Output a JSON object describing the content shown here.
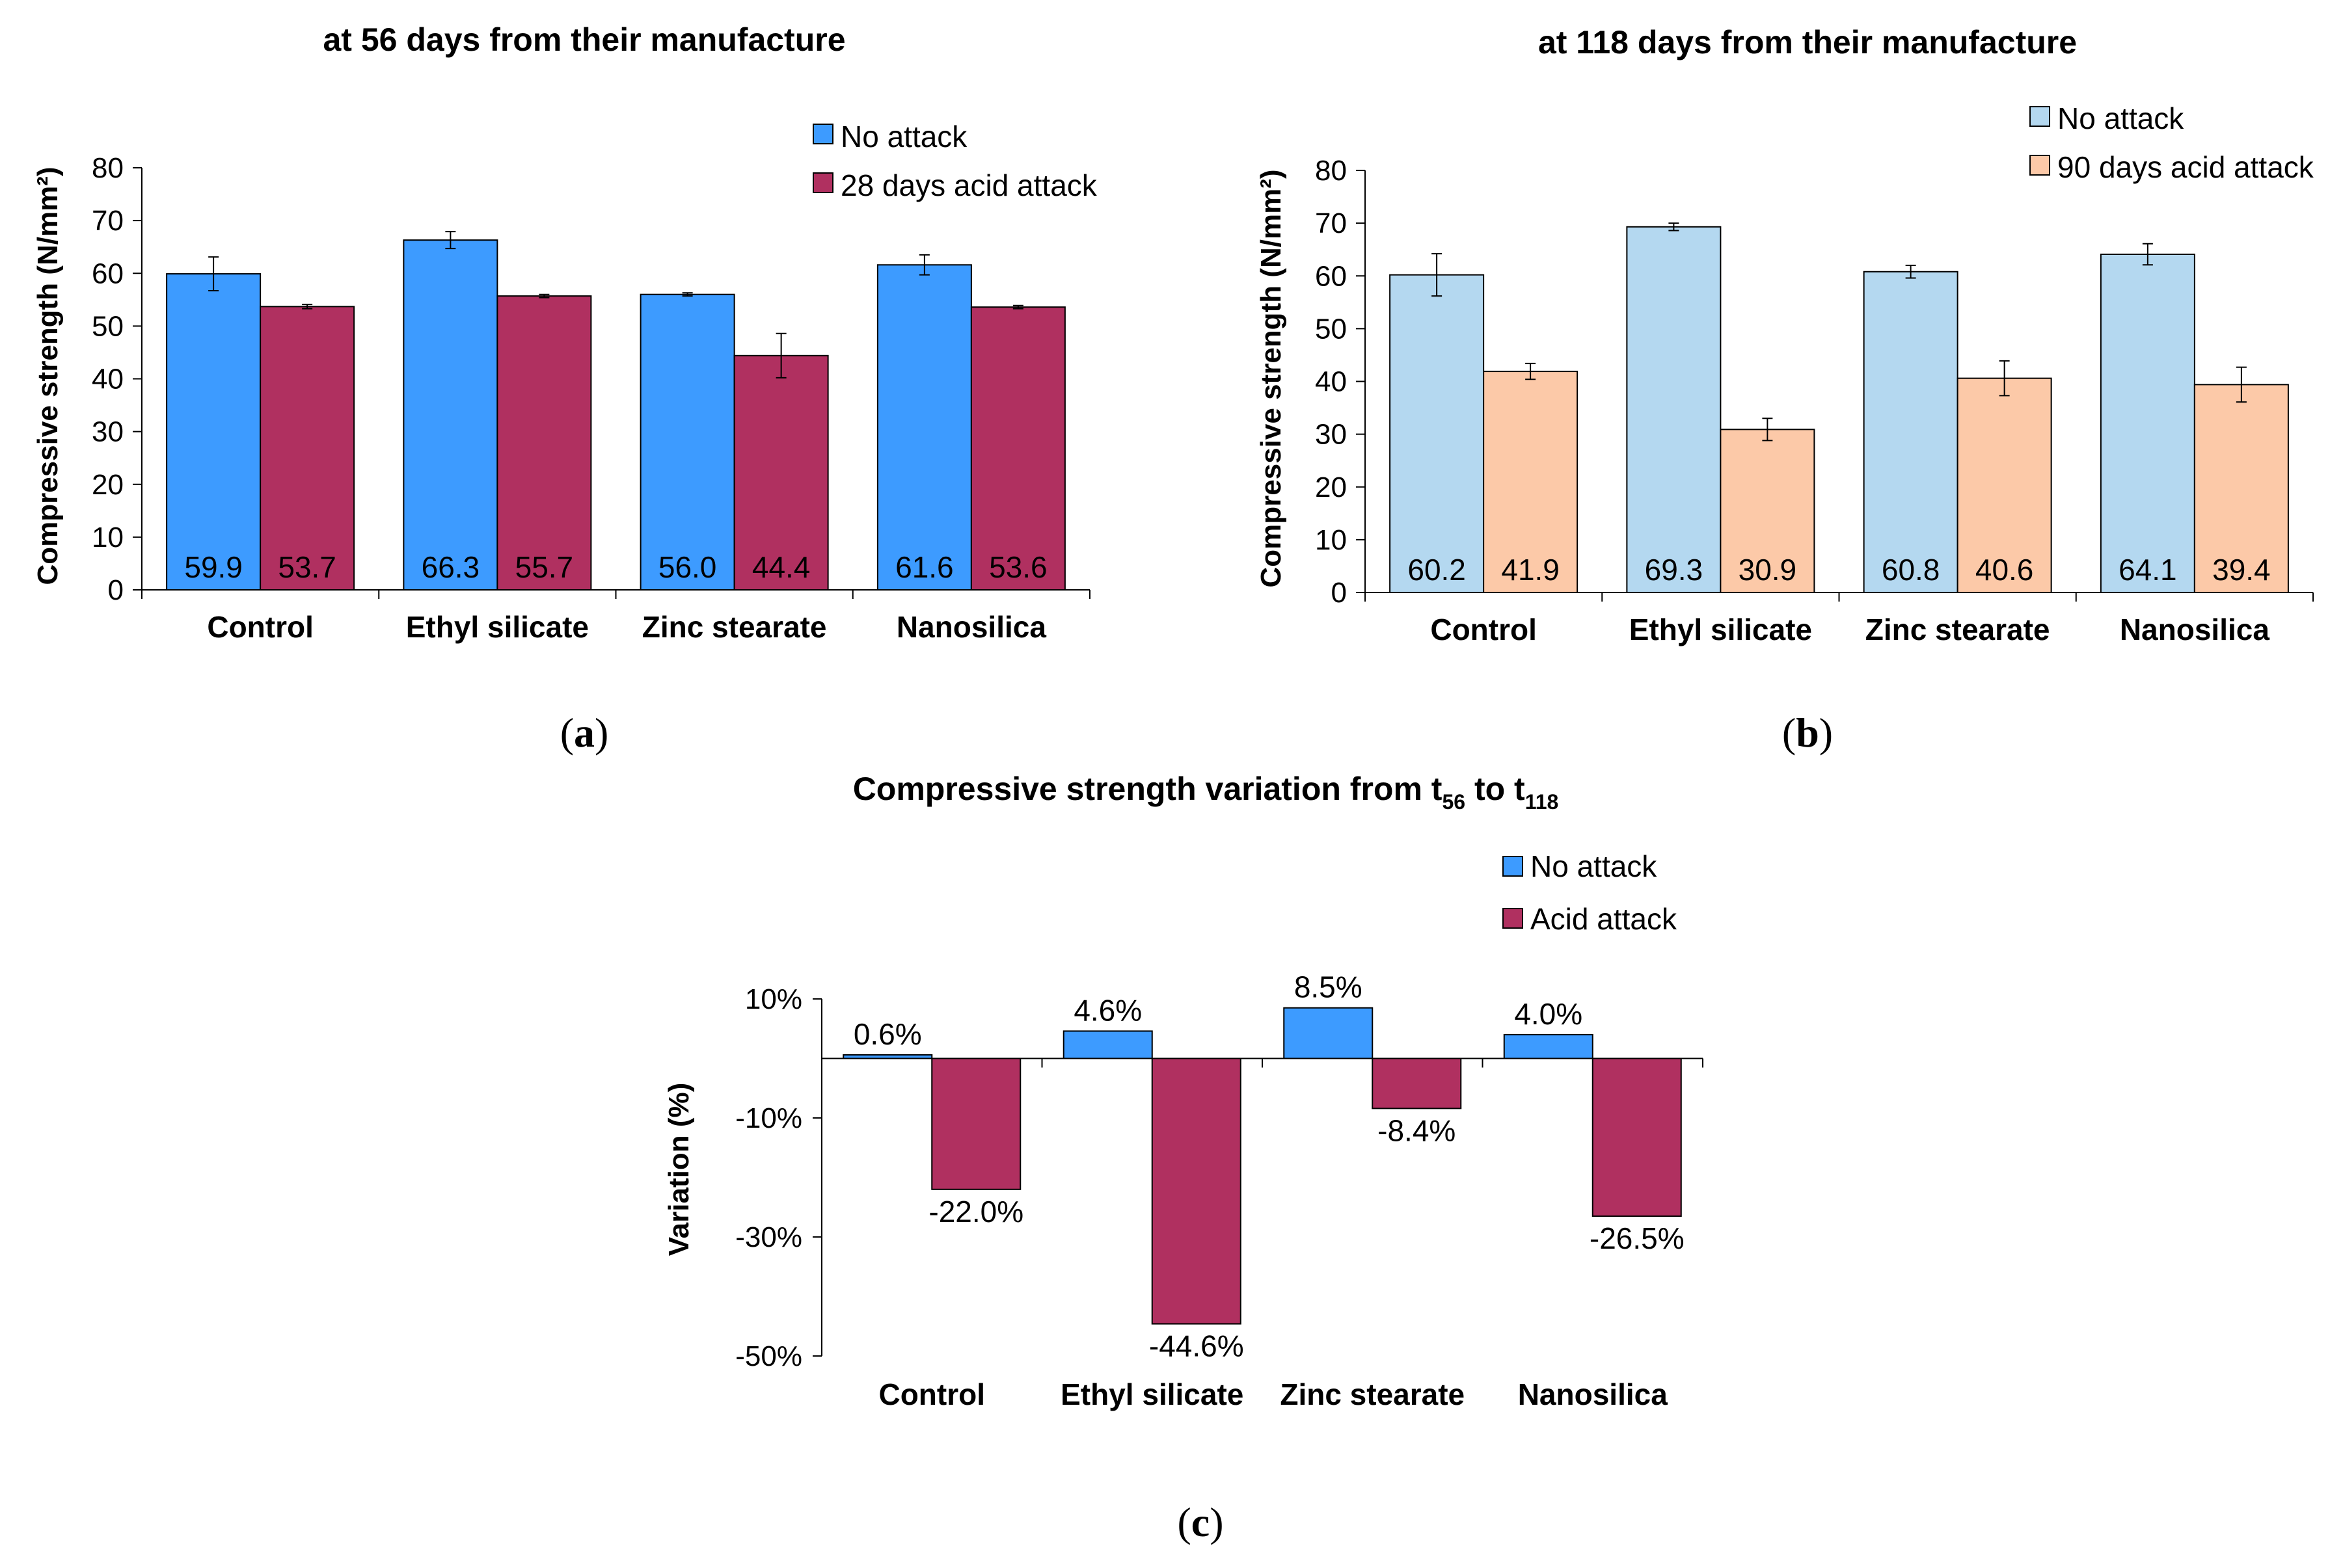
{
  "chart_data": [
    {
      "id": "a",
      "type": "bar",
      "title": "at 56 days from their manufacture",
      "ylabel": "Compressive strength (N/mm²)",
      "xlabel": "",
      "ylim": [
        0,
        80
      ],
      "yticks": [
        "0",
        "10",
        "20",
        "30",
        "40",
        "50",
        "60",
        "70",
        "80"
      ],
      "categories": [
        "Control",
        "Ethyl silicate",
        "Zinc stearate",
        "Nanosilica"
      ],
      "series": [
        {
          "name": "No attack",
          "color": "#3d9bff",
          "values": [
            59.9,
            66.3,
            56.0,
            61.6
          ],
          "labels": [
            "59.9",
            "66.3",
            "56.0",
            "61.6"
          ],
          "errors": [
            3.2,
            1.6,
            0.3,
            1.9
          ]
        },
        {
          "name": "28 days acid attack",
          "color": "#b03060",
          "values": [
            53.7,
            55.7,
            44.4,
            53.6
          ],
          "labels": [
            "53.7",
            "55.7",
            "44.4",
            "53.6"
          ],
          "errors": [
            0.4,
            0.3,
            4.2,
            0.3
          ]
        }
      ],
      "legend": "top-right",
      "caption": "(a)"
    },
    {
      "id": "b",
      "type": "bar",
      "title": "at 118 days from their manufacture",
      "ylabel": "Compressive strength (N/mm²)",
      "xlabel": "",
      "ylim": [
        0,
        80
      ],
      "yticks": [
        "0",
        "10",
        "20",
        "30",
        "40",
        "50",
        "60",
        "70",
        "80"
      ],
      "categories": [
        "Control",
        "Ethyl silicate",
        "Zinc stearate",
        "Nanosilica"
      ],
      "series": [
        {
          "name": "No attack",
          "color": "#b4d8f0",
          "values": [
            60.2,
            69.3,
            60.8,
            64.1
          ],
          "labels": [
            "60.2",
            "69.3",
            "60.8",
            "64.1"
          ],
          "errors": [
            4.0,
            0.7,
            1.2,
            2.0
          ]
        },
        {
          "name": "90 days acid attack",
          "color": "#fcc9a8",
          "values": [
            41.9,
            30.9,
            40.6,
            39.4
          ],
          "labels": [
            "41.9",
            "30.9",
            "40.6",
            "39.4"
          ],
          "errors": [
            1.5,
            2.1,
            3.3,
            3.3
          ]
        }
      ],
      "legend": "top-right",
      "caption": "(b)"
    },
    {
      "id": "c",
      "type": "bar",
      "title_parts": [
        "Compressive strength variation from t",
        "56",
        " to t",
        "118"
      ],
      "ylabel": "Variation (%)",
      "xlabel": "",
      "ylim": [
        -50,
        10
      ],
      "ytick_values": [
        10,
        -10,
        -30,
        -50
      ],
      "yticks": [
        "10%",
        "-10%",
        "-30%",
        "-50%"
      ],
      "categories": [
        "Control",
        "Ethyl silicate",
        "Zinc stearate",
        "Nanosilica"
      ],
      "series": [
        {
          "name": "No attack",
          "color": "#3d9bff",
          "values": [
            0.6,
            4.6,
            8.5,
            4.0
          ],
          "labels": [
            "0.6%",
            "4.6%",
            "8.5%",
            "4.0%"
          ]
        },
        {
          "name": "Acid attack",
          "color": "#b03060",
          "values": [
            -22.0,
            -44.6,
            -8.4,
            -26.5
          ],
          "labels": [
            "-22.0%",
            "-44.6%",
            "-8.4%",
            "-26.5%"
          ]
        }
      ],
      "legend": "top-right",
      "caption": "(c)"
    }
  ]
}
